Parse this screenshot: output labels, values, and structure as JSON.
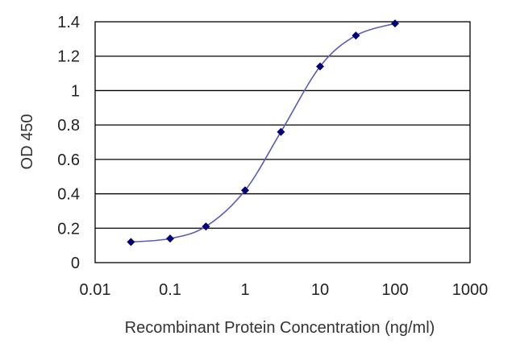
{
  "chart_data": {
    "type": "line",
    "title": "",
    "xlabel": "Recombinant Protein Concentration (ng/ml)",
    "ylabel": "OD 450",
    "x_scale": "log",
    "xlim": [
      0.01,
      1000
    ],
    "ylim": [
      0,
      1.4
    ],
    "x_ticks": [
      0.01,
      0.1,
      1,
      10,
      100,
      1000
    ],
    "x_tick_labels": [
      "0.01",
      "0.1",
      "1",
      "10",
      "100",
      "1000"
    ],
    "y_ticks": [
      0,
      0.2,
      0.4,
      0.6,
      0.8,
      1,
      1.2,
      1.4
    ],
    "y_tick_labels": [
      "0",
      "0.2",
      "0.4",
      "0.6",
      "0.8",
      "1",
      "1.2",
      "1.4"
    ],
    "grid": "horizontal",
    "legend": "none",
    "series": [
      {
        "x": [
          0.03,
          0.1,
          0.3,
          1,
          3,
          10,
          30,
          100
        ],
        "y": [
          0.12,
          0.14,
          0.21,
          0.42,
          0.76,
          1.14,
          1.32,
          1.39
        ],
        "color": "#00007a",
        "line_color": "#5b5bb8",
        "marker": "diamond"
      }
    ]
  }
}
